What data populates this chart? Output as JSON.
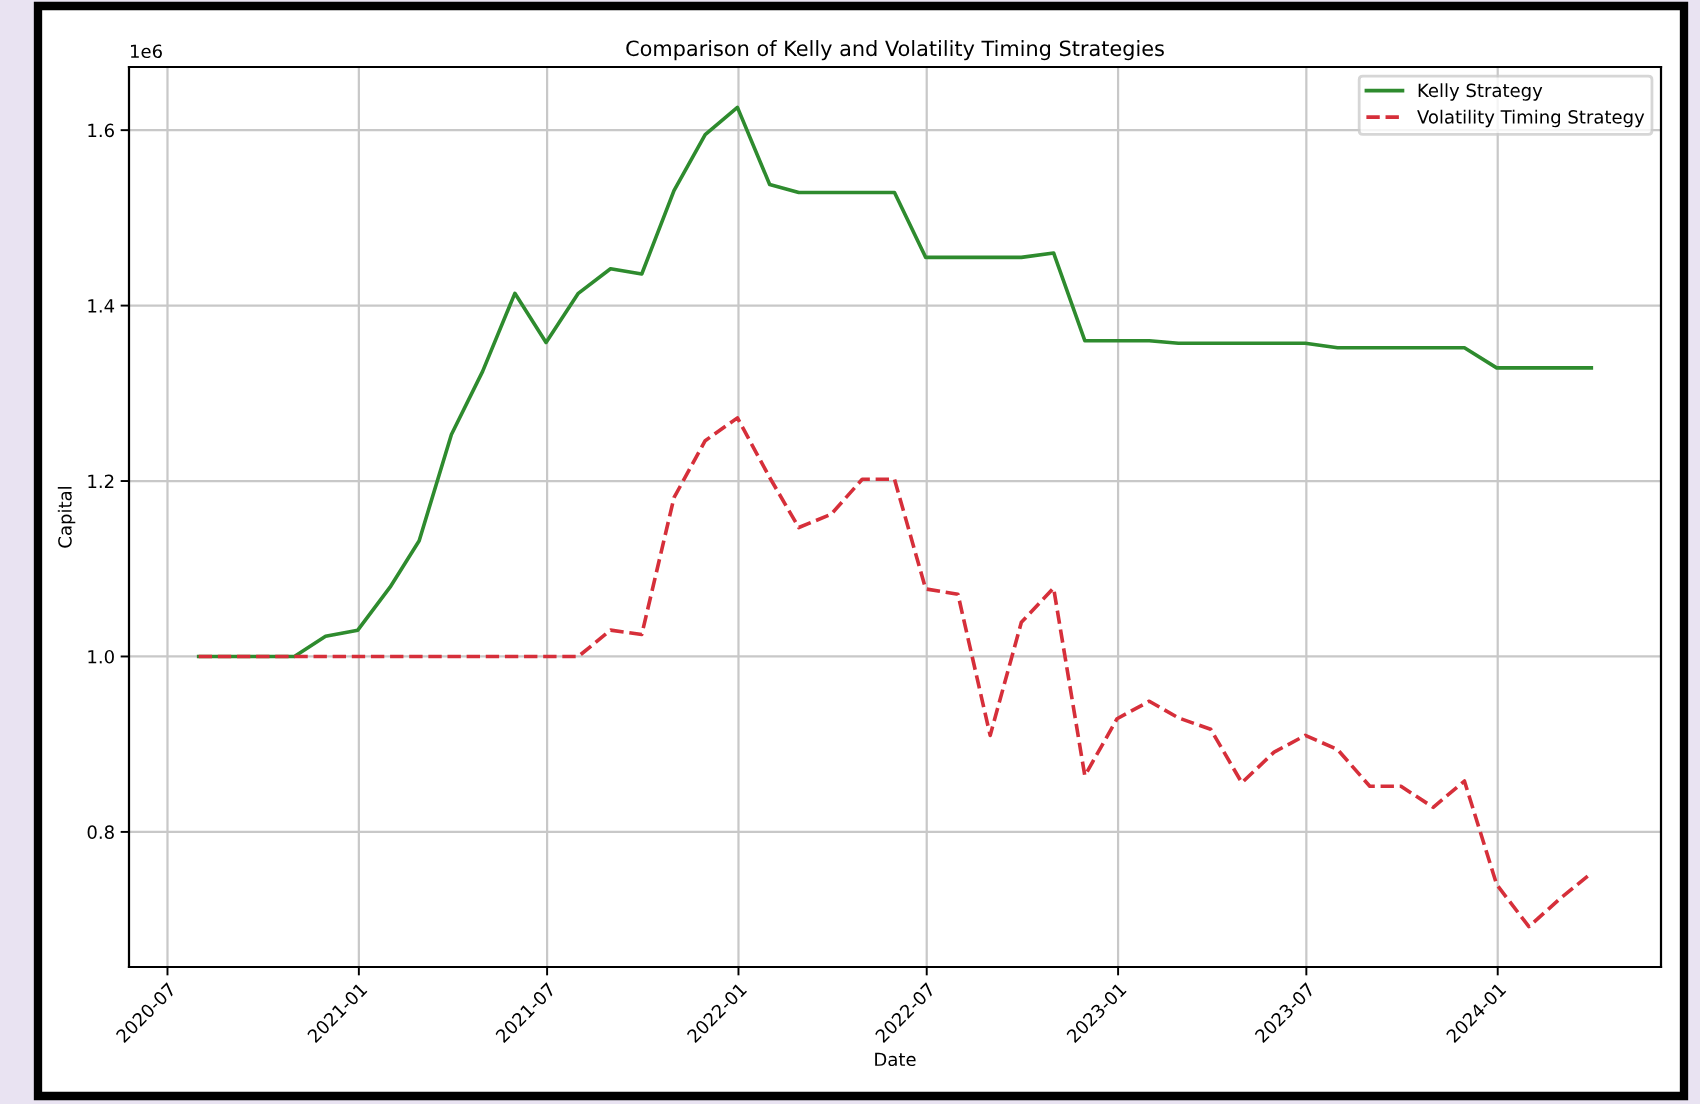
{
  "chart_data": {
    "type": "line",
    "title": "Comparison of Kelly and Volatility Timing Strategies",
    "xlabel": "Date",
    "ylabel": "Capital",
    "annotations": [
      "1e6"
    ],
    "x": [
      "2020-07-31",
      "2020-08-31",
      "2020-09-30",
      "2020-10-31",
      "2020-11-30",
      "2020-12-31",
      "2021-01-31",
      "2021-02-28",
      "2021-03-31",
      "2021-04-30",
      "2021-05-31",
      "2021-06-30",
      "2021-07-31",
      "2021-08-31",
      "2021-09-30",
      "2021-10-31",
      "2021-11-30",
      "2021-12-31",
      "2022-01-31",
      "2022-02-28",
      "2022-03-31",
      "2022-04-30",
      "2022-05-31",
      "2022-06-30",
      "2022-07-31",
      "2022-08-31",
      "2022-09-30",
      "2022-10-31",
      "2022-11-30",
      "2022-12-31",
      "2023-01-31",
      "2023-02-28",
      "2023-03-31",
      "2023-04-30",
      "2023-05-31",
      "2023-06-30",
      "2023-07-31",
      "2023-08-31",
      "2023-09-30",
      "2023-10-31",
      "2023-11-30",
      "2023-12-31",
      "2024-01-31",
      "2024-02-29",
      "2024-03-31"
    ],
    "series": [
      {
        "name": "Kelly Strategy",
        "color": "#2e8b2e",
        "line_style": "solid",
        "values": [
          1.0,
          1.0,
          1.0,
          1.0,
          1.023,
          1.03,
          1.079,
          1.132,
          1.253,
          1.325,
          1.414,
          1.358,
          1.414,
          1.442,
          1.436,
          1.531,
          1.595,
          1.626,
          1.538,
          1.529,
          1.529,
          1.529,
          1.529,
          1.455,
          1.455,
          1.455,
          1.455,
          1.46,
          1.36,
          1.36,
          1.36,
          1.357,
          1.357,
          1.357,
          1.357,
          1.357,
          1.352,
          1.352,
          1.352,
          1.352,
          1.352,
          1.329,
          1.329,
          1.329,
          1.329
        ]
      },
      {
        "name": "Volatility Timing Strategy",
        "color": "#d62f3a",
        "line_style": "dashed",
        "values": [
          1.0,
          1.0,
          1.0,
          1.0,
          1.0,
          1.0,
          1.0,
          1.0,
          1.0,
          1.0,
          1.0,
          1.0,
          1.0,
          1.03,
          1.025,
          1.181,
          1.246,
          1.272,
          1.204,
          1.147,
          1.162,
          1.202,
          1.202,
          1.077,
          1.071,
          0.91,
          1.039,
          1.078,
          0.864,
          0.929,
          0.949,
          0.93,
          0.917,
          0.856,
          0.891,
          0.91,
          0.894,
          0.852,
          0.852,
          0.828,
          0.858,
          0.74,
          0.692,
          0.723,
          0.753
        ]
      }
    ],
    "xlim": [
      "2020-05-25",
      "2024-06-06"
    ],
    "xticks": [
      "2020-07",
      "2021-01",
      "2021-07",
      "2022-01",
      "2022-07",
      "2023-01",
      "2023-07",
      "2024-01"
    ],
    "ylim": [
      0.646,
      1.672
    ],
    "yticks": [
      {
        "value": 0.8,
        "label": "0.8"
      },
      {
        "value": 1.0,
        "label": "1.0"
      },
      {
        "value": 1.2,
        "label": "1.2"
      },
      {
        "value": 1.4,
        "label": "1.4"
      },
      {
        "value": 1.6,
        "label": "1.6"
      }
    ],
    "grid": true,
    "legend": "top right",
    "marker": "none"
  }
}
